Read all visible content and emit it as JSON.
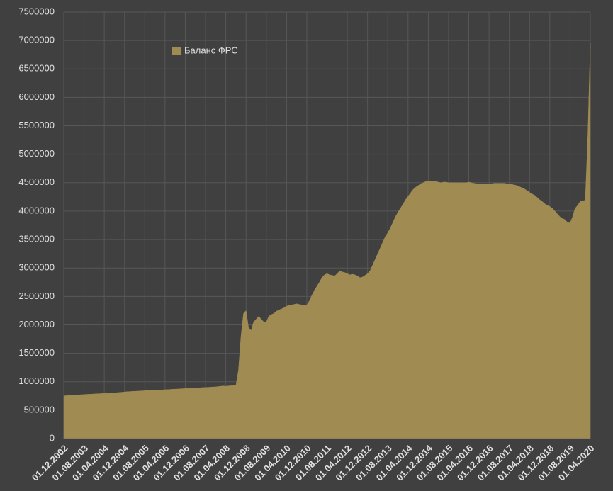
{
  "chart_data": {
    "type": "area",
    "categories": [
      "01.12.2002",
      null,
      null,
      null,
      null,
      null,
      null,
      null,
      "01.08.2003",
      null,
      null,
      null,
      null,
      null,
      null,
      null,
      "01.04.2004",
      null,
      null,
      null,
      null,
      null,
      null,
      null,
      "01.12.2004",
      null,
      null,
      null,
      null,
      null,
      null,
      null,
      "01.08.2005",
      null,
      null,
      null,
      null,
      null,
      null,
      null,
      "01.04.2006",
      null,
      null,
      null,
      null,
      null,
      null,
      null,
      "01.12.2006",
      null,
      null,
      null,
      null,
      null,
      null,
      null,
      "01.08.2007",
      null,
      null,
      null,
      null,
      null,
      null,
      null,
      "01.04.2008",
      null,
      null,
      null,
      null,
      null,
      null,
      null,
      "01.12.2008",
      null,
      null,
      null,
      null,
      null,
      null,
      null,
      "01.08.2009",
      null,
      null,
      null,
      null,
      null,
      null,
      null,
      "01.04.2010",
      null,
      null,
      null,
      null,
      null,
      null,
      null,
      "01.12.2010",
      null,
      null,
      null,
      null,
      null,
      null,
      null,
      "01.08.2011",
      null,
      null,
      null,
      null,
      null,
      null,
      null,
      "01.04.2012",
      null,
      null,
      null,
      null,
      null,
      null,
      null,
      "01.12.2012",
      null,
      null,
      null,
      null,
      null,
      null,
      null,
      "01.08.2013",
      null,
      null,
      null,
      null,
      null,
      null,
      null,
      "01.04.2014",
      null,
      null,
      null,
      null,
      null,
      null,
      null,
      "01.12.2014",
      null,
      null,
      null,
      null,
      null,
      null,
      null,
      "01.08.2015",
      null,
      null,
      null,
      null,
      null,
      null,
      null,
      "01.04.2016",
      null,
      null,
      null,
      null,
      null,
      null,
      null,
      "01.12.2016",
      null,
      null,
      null,
      null,
      null,
      null,
      null,
      "01.08.2017",
      null,
      null,
      null,
      null,
      null,
      null,
      null,
      "01.04.2018",
      null,
      null,
      null,
      null,
      null,
      null,
      null,
      "01.12.2018",
      null,
      null,
      null,
      null,
      null,
      null,
      null,
      "01.08.2019",
      null,
      null,
      null,
      null,
      null,
      null,
      null,
      "01.04.2020"
    ],
    "series": [
      {
        "name": "Баланс ФРС",
        "color": "#a08c52",
        "values": [
          750000,
          755000,
          760000,
          762000,
          765000,
          768000,
          770000,
          772000,
          775000,
          778000,
          780000,
          782000,
          785000,
          788000,
          790000,
          792000,
          795000,
          797000,
          800000,
          802000,
          805000,
          808000,
          812000,
          816000,
          820000,
          825000,
          827000,
          830000,
          832000,
          835000,
          837000,
          840000,
          842000,
          845000,
          847000,
          848000,
          850000,
          852000,
          855000,
          857000,
          860000,
          862000,
          865000,
          868000,
          870000,
          872000,
          875000,
          878000,
          880000,
          882000,
          885000,
          888000,
          890000,
          892000,
          895000,
          898000,
          900000,
          902000,
          905000,
          908000,
          910000,
          915000,
          920000,
          925000,
          920000,
          925000,
          930000,
          930000,
          935000,
          1200000,
          1800000,
          2200000,
          2250000,
          1950000,
          1900000,
          2050000,
          2100000,
          2150000,
          2100000,
          2050000,
          2050000,
          2150000,
          2180000,
          2200000,
          2240000,
          2260000,
          2280000,
          2300000,
          2330000,
          2340000,
          2350000,
          2360000,
          2370000,
          2360000,
          2350000,
          2340000,
          2350000,
          2420000,
          2520000,
          2600000,
          2680000,
          2750000,
          2830000,
          2880000,
          2900000,
          2880000,
          2870000,
          2860000,
          2900000,
          2950000,
          2930000,
          2920000,
          2900000,
          2880000,
          2890000,
          2880000,
          2860000,
          2830000,
          2840000,
          2870000,
          2900000,
          2950000,
          3050000,
          3150000,
          3250000,
          3350000,
          3450000,
          3550000,
          3620000,
          3700000,
          3800000,
          3900000,
          3980000,
          4050000,
          4120000,
          4200000,
          4260000,
          4320000,
          4380000,
          4420000,
          4450000,
          4480000,
          4500000,
          4520000,
          4530000,
          4530000,
          4520000,
          4520000,
          4510000,
          4500000,
          4510000,
          4510000,
          4500000,
          4500000,
          4500000,
          4500000,
          4500000,
          4500000,
          4500000,
          4500000,
          4510000,
          4500000,
          4490000,
          4480000,
          4480000,
          4480000,
          4480000,
          4480000,
          4480000,
          4480000,
          4490000,
          4490000,
          4490000,
          4490000,
          4490000,
          4480000,
          4480000,
          4470000,
          4460000,
          4450000,
          4430000,
          4410000,
          4390000,
          4360000,
          4330000,
          4300000,
          4280000,
          4240000,
          4200000,
          4170000,
          4130000,
          4100000,
          4080000,
          4050000,
          4000000,
          3950000,
          3900000,
          3870000,
          3850000,
          3800000,
          3790000,
          3900000,
          4050000,
          4100000,
          4170000,
          4180000,
          4190000,
          5300000,
          6950000
        ]
      }
    ],
    "ylim": [
      0,
      7500000
    ],
    "yticks": [
      0,
      500000,
      1000000,
      1500000,
      2000000,
      2500000,
      3000000,
      3500000,
      4000000,
      4500000,
      5000000,
      5500000,
      6000000,
      6500000,
      7000000,
      7500000
    ],
    "grid": true,
    "legend": "top-left"
  }
}
